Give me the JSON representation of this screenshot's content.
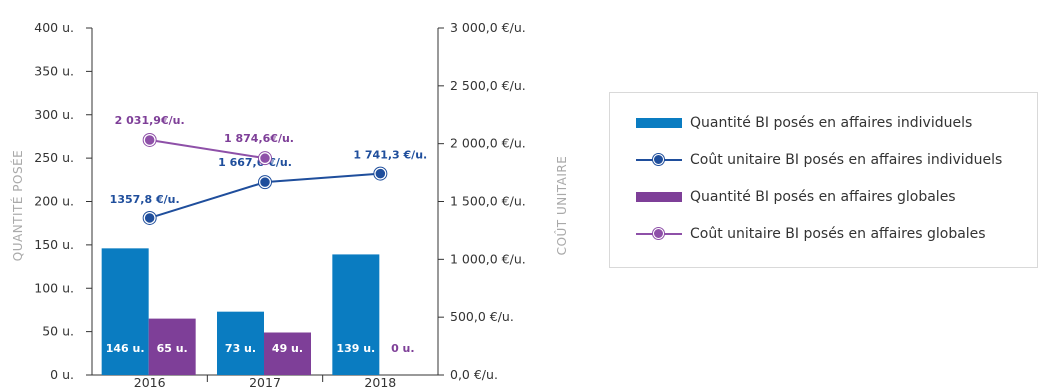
{
  "colors": {
    "qty_individual": "#0a7cc1",
    "cost_individual": "#1f4e9c",
    "qty_global": "#7e3f98",
    "cost_global": "#8e50a8",
    "cost_individual_label": "#1f4e9c",
    "cost_global_label": "#7e3f98"
  },
  "legend": [
    {
      "label": "Quantité BI posés en affaires individuels",
      "kind": "bar",
      "color_key": "qty_individual"
    },
    {
      "label": "Coût unitaire BI posés en affaires individuels",
      "kind": "line",
      "color_key": "cost_individual"
    },
    {
      "label": "Quantité BI posés en affaires globales",
      "kind": "bar",
      "color_key": "qty_global"
    },
    {
      "label": "Coût unitaire BI posés en affaires globales",
      "kind": "line",
      "color_key": "cost_global"
    }
  ],
  "chart_data": {
    "type": "bar",
    "categories": [
      "2016",
      "2017",
      "2018"
    ],
    "ylabel": "QUANTITÉ POSÉE",
    "y2label": "COÛT UNITAIRE",
    "ylim": [
      0,
      400
    ],
    "y2lim": [
      0,
      3000
    ],
    "yticks": [
      "0 u.",
      "50 u.",
      "100 u.",
      "150 u.",
      "200 u.",
      "250 u.",
      "300 u.",
      "350 u.",
      "400 u."
    ],
    "y2ticks": [
      "0,0 €/u.",
      "500,0 €/u.",
      "1 000,0 €/u.",
      "1 500,0 €/u.",
      "2 000,0 €/u.",
      "2 500,0 €/u.",
      "3 000,0 €/u."
    ],
    "grid": false,
    "legend_position": "right",
    "bar_series": [
      {
        "name": "Quantité BI posés en affaires individuels",
        "color_key": "qty_individual",
        "values": [
          146,
          73,
          139
        ],
        "labels": [
          "146 u.",
          "73 u.",
          "139 u."
        ]
      },
      {
        "name": "Quantité BI posés en affaires globales",
        "color_key": "qty_global",
        "values": [
          65,
          49,
          0
        ],
        "labels": [
          "65 u.",
          "49 u.",
          "0 u."
        ]
      }
    ],
    "line_series": [
      {
        "name": "Coût unitaire BI posés en affaires individuels",
        "color_key": "cost_individual",
        "values": [
          1357.8,
          1667.6,
          1741.3
        ],
        "labels": [
          "1357,8 €/u.",
          "1 667,6 €/u.",
          "1 741,3 €/u."
        ]
      },
      {
        "name": "Coût unitaire BI posés en affaires globales",
        "color_key": "cost_global",
        "values": [
          2031.9,
          1874.6,
          null
        ],
        "labels": [
          "2 031,9€/u.",
          "1 874,6€/u.",
          null
        ]
      }
    ]
  }
}
